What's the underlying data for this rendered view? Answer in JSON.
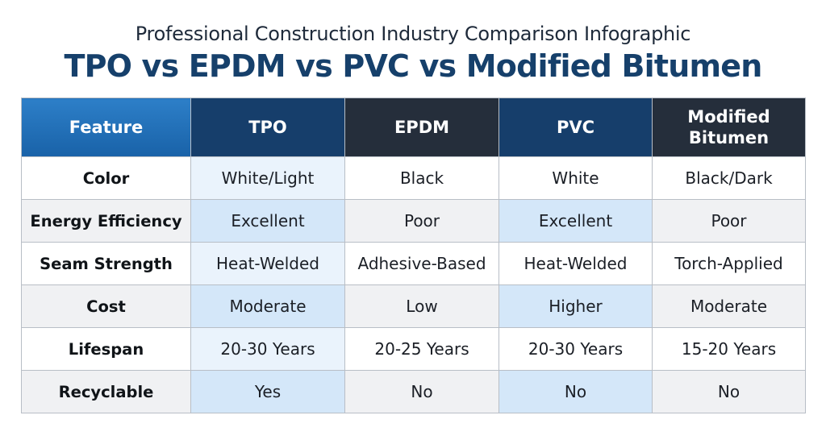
{
  "header": {
    "subtitle": "Professional Construction Industry Comparison Infographic",
    "title": "TPO vs EPDM vs PVC vs Modified Bitumen"
  },
  "table": {
    "columns": [
      "Feature",
      "TPO",
      "EPDM",
      "PVC",
      "Modified Bitumen"
    ],
    "rows": [
      {
        "feature": "Color",
        "tpo": "White/Light",
        "epdm": "Black",
        "pvc": "White",
        "mod": "Black/Dark"
      },
      {
        "feature": "Energy Efficiency",
        "tpo": "Excellent",
        "epdm": "Poor",
        "pvc": "Excellent",
        "mod": "Poor"
      },
      {
        "feature": "Seam Strength",
        "tpo": "Heat-Welded",
        "epdm": "Adhesive-Based",
        "pvc": "Heat-Welded",
        "mod": "Torch-Applied"
      },
      {
        "feature": "Cost",
        "tpo": "Moderate",
        "epdm": "Low",
        "pvc": "Higher",
        "mod": "Moderate"
      },
      {
        "feature": "Lifespan",
        "tpo": "20-30 Years",
        "epdm": "20-25 Years",
        "pvc": "20-30 Years",
        "mod": "15-20 Years"
      },
      {
        "feature": "Recyclable",
        "tpo": "Yes",
        "epdm": "No",
        "pvc": "No",
        "mod": "No"
      }
    ]
  },
  "colors": {
    "title": "#16406b",
    "feature_header": "#1f6db5",
    "tpo_header": "#163e6b",
    "epdm_header": "#252e3b",
    "pvc_header": "#163e6b",
    "mod_header": "#252e3b",
    "highlight_cell": "#d4e7f9"
  }
}
